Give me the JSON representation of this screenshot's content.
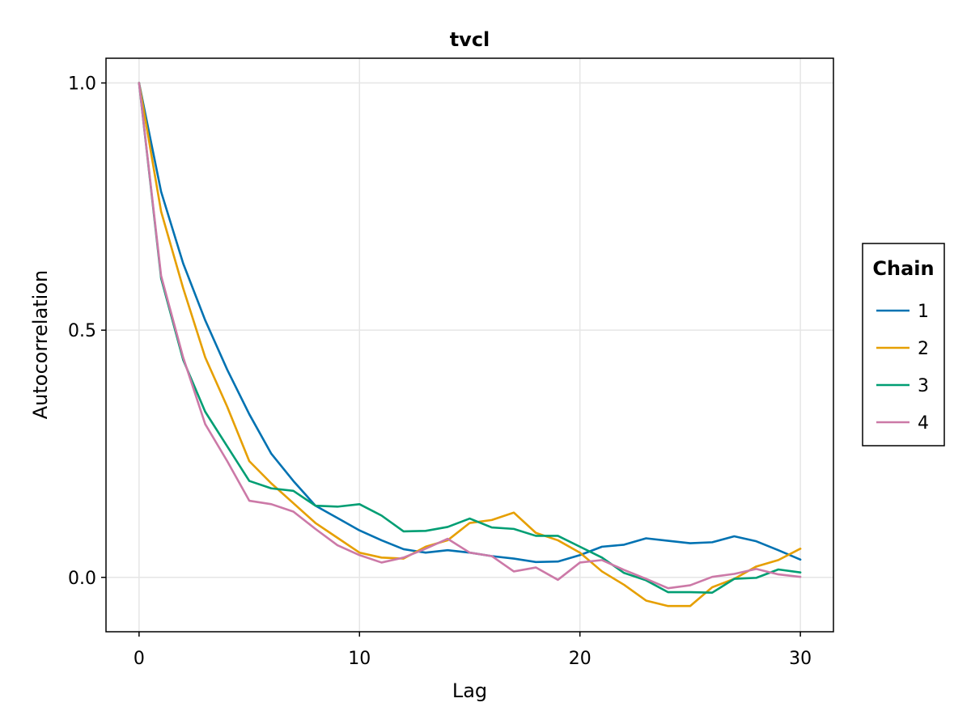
{
  "chart_data": {
    "type": "line",
    "title": "tvcl",
    "xlabel": "Lag",
    "ylabel": "Autocorrelation",
    "xlim": [
      -1.5,
      31.5
    ],
    "ylim": [
      -0.11,
      1.05
    ],
    "x_ticks": [
      0,
      10,
      20,
      30
    ],
    "x_tick_labels": [
      "0",
      "10",
      "20",
      "30"
    ],
    "y_ticks": [
      0.0,
      0.5,
      1.0
    ],
    "y_tick_labels": [
      "0.0",
      "0.5",
      "1.0"
    ],
    "grid": true,
    "legend": {
      "title": "Chain",
      "placement": "right"
    },
    "x": [
      0,
      1,
      2,
      3,
      4,
      5,
      6,
      7,
      8,
      9,
      10,
      11,
      12,
      13,
      14,
      15,
      16,
      17,
      18,
      19,
      20,
      21,
      22,
      23,
      24,
      25,
      26,
      27,
      28,
      29,
      30
    ],
    "series": [
      {
        "name": "1",
        "color": "#0072b2",
        "values": [
          1.0,
          0.78,
          0.635,
          0.52,
          0.42,
          0.33,
          0.25,
          0.195,
          0.145,
          0.12,
          0.095,
          0.075,
          0.057,
          0.05,
          0.055,
          0.05,
          0.043,
          0.038,
          0.031,
          0.032,
          0.045,
          0.062,
          0.066,
          0.079,
          0.074,
          0.069,
          0.071,
          0.083,
          0.073,
          0.055,
          0.036
        ]
      },
      {
        "name": "2",
        "color": "#e69f00",
        "values": [
          1.0,
          0.74,
          0.585,
          0.445,
          0.345,
          0.235,
          0.19,
          0.15,
          0.11,
          0.08,
          0.05,
          0.04,
          0.038,
          0.062,
          0.075,
          0.11,
          0.116,
          0.131,
          0.09,
          0.075,
          0.05,
          0.012,
          -0.015,
          -0.047,
          -0.058,
          -0.058,
          -0.02,
          -0.003,
          0.022,
          0.035,
          0.058
        ]
      },
      {
        "name": "3",
        "color": "#009e73",
        "values": [
          1.0,
          0.605,
          0.44,
          0.335,
          0.265,
          0.195,
          0.18,
          0.175,
          0.145,
          0.143,
          0.148,
          0.125,
          0.093,
          0.094,
          0.102,
          0.119,
          0.101,
          0.098,
          0.084,
          0.084,
          0.062,
          0.04,
          0.009,
          -0.006,
          -0.03,
          -0.03,
          -0.031,
          -0.003,
          -0.001,
          0.016,
          0.01
        ]
      },
      {
        "name": "4",
        "color": "#cc79a7",
        "values": [
          1.0,
          0.61,
          0.445,
          0.31,
          0.235,
          0.155,
          0.148,
          0.133,
          0.098,
          0.065,
          0.045,
          0.03,
          0.04,
          0.058,
          0.078,
          0.05,
          0.043,
          0.012,
          0.02,
          -0.005,
          0.03,
          0.035,
          0.015,
          -0.003,
          -0.022,
          -0.016,
          0.001,
          0.007,
          0.017,
          0.006,
          0.001
        ]
      }
    ]
  }
}
